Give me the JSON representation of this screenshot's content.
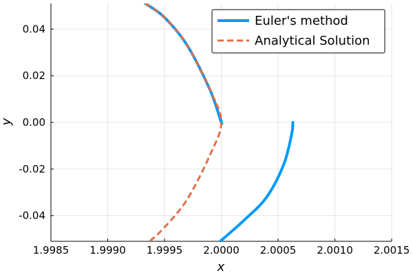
{
  "chart_data": {
    "type": "line",
    "xlabel": "x",
    "ylabel": "y",
    "xlim": [
      1.9985,
      2.0015
    ],
    "ylim": [
      -0.051,
      0.051
    ],
    "x_ticks": [
      1.9985,
      1.999,
      1.9995,
      2.0,
      2.0005,
      2.001,
      2.0015
    ],
    "x_tick_labels": [
      "1.9985",
      "1.9990",
      "1.9995",
      "2.0000",
      "2.0005",
      "2.0010",
      "2.0015"
    ],
    "y_ticks": [
      -0.04,
      -0.02,
      0.0,
      0.02,
      0.04
    ],
    "y_tick_labels": [
      "-0.04",
      "-0.02",
      "0.00",
      "0.02",
      "0.04"
    ],
    "grid": true,
    "legend_position": "top-right",
    "series": [
      {
        "name": "Euler's method",
        "color": "#009AF9",
        "style": "solid",
        "points": [
          {
            "x": 1.99933,
            "y": 0.051
          },
          {
            "x": 1.9995,
            "y": 0.045
          },
          {
            "x": 1.9997,
            "y": 0.033
          },
          {
            "x": 1.9999,
            "y": 0.014
          },
          {
            "x": 2.0,
            "y": 0.0
          },
          {
            "x": 1.99999,
            "y": 0.002
          }
        ]
      },
      {
        "name": "Euler's method",
        "color": "#009AF9",
        "style": "solid",
        "points": [
          {
            "x": 2.00063,
            "y": 0.0
          },
          {
            "x": 2.00062,
            "y": -0.005
          },
          {
            "x": 2.00055,
            "y": -0.018
          },
          {
            "x": 2.0004,
            "y": -0.032
          },
          {
            "x": 2.0002,
            "y": -0.042
          },
          {
            "x": 1.99999,
            "y": -0.051
          }
        ]
      },
      {
        "name": "Analytical Solution",
        "color": "#E26F46",
        "style": "dashed",
        "points": [
          {
            "x": 1.99933,
            "y": 0.051
          },
          {
            "x": 1.9995,
            "y": 0.045
          },
          {
            "x": 1.9997,
            "y": 0.033
          },
          {
            "x": 1.9999,
            "y": 0.014
          },
          {
            "x": 2.0,
            "y": 0.0
          },
          {
            "x": 1.9999,
            "y": -0.014
          },
          {
            "x": 1.9997,
            "y": -0.033
          },
          {
            "x": 1.9995,
            "y": -0.045
          },
          {
            "x": 1.99937,
            "y": -0.051
          }
        ]
      }
    ],
    "legend": [
      {
        "label": "Euler's method",
        "color": "#009AF9",
        "style": "solid"
      },
      {
        "label": "Analytical Solution",
        "color": "#E26F46",
        "style": "dashed"
      }
    ]
  }
}
